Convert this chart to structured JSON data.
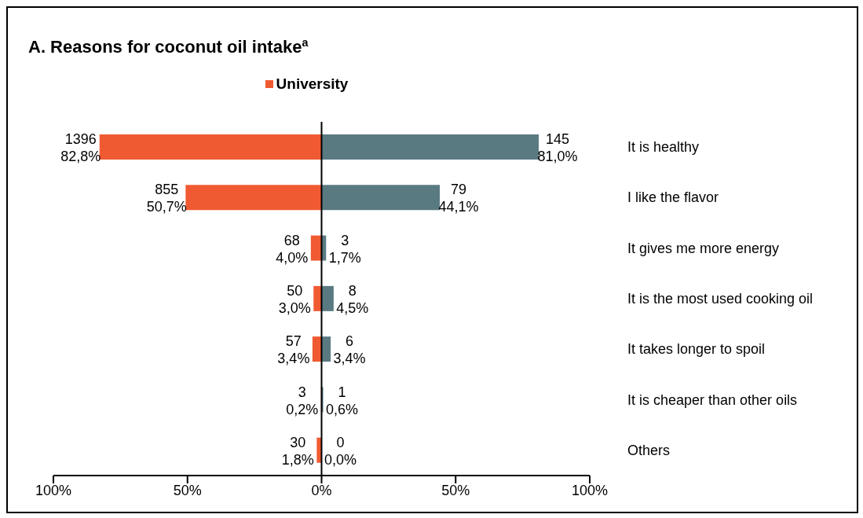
{
  "chart_data": {
    "type": "bar",
    "orientation": "horizontal",
    "title": "A. Reasons for coconut oil intake$^{a}$",
    "categories": [
      "It is healthy",
      "I like the flavor",
      "It gives me more energy",
      "It is the most used cooking oil",
      "It takes longer to spoil",
      "It is cheaper than other oils",
      "Others"
    ],
    "series": [
      {
        "name": "University",
        "color": "#f05a32",
        "base": [
          -82.8,
          -50.7,
          -4.0,
          -3.0,
          -3.4,
          -0.2,
          -1.8
        ],
        "values": [
          82.8,
          50.7,
          4.0,
          3.0,
          3.4,
          0.2,
          1.8
        ],
        "value_labels": [
          "1396\n82,8%",
          "855\n50,7%",
          "68\n4,0%",
          "50\n3,0%",
          "57\n3,4%",
          "3\n0,2%",
          "30\n1,8%"
        ]
      },
      {
        "color": "#5a7a82",
        "values": [
          81.0,
          44.1,
          1.7,
          4.5,
          3.4,
          0.6,
          0.0
        ],
        "value_labels": [
          "145\n81,0%",
          "79\n44,1%",
          "3\n1,7%",
          "8\n4,5%",
          "6\n3,4%",
          "1\n0,6%",
          "0\n0,0%"
        ]
      }
    ],
    "xlim": [
      -100,
      100
    ],
    "xticks": [
      {
        "value": -100,
        "label": "100%"
      },
      {
        "value": -50,
        "label": "50%"
      },
      {
        "value": 0,
        "label": "0%"
      },
      {
        "value": 50,
        "label": "50%"
      },
      {
        "value": 100,
        "label": "100%"
      }
    ],
    "ref_lines": [
      {
        "axis": "x",
        "value": 0,
        "color": "#000000"
      }
    ],
    "legend": "top",
    "grid": false
  }
}
